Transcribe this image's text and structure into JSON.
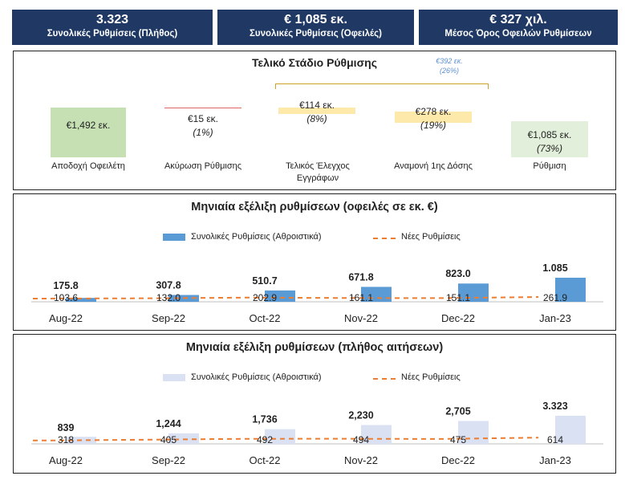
{
  "kpis": [
    {
      "value": "3.323",
      "label": "Συνολικές Ρυθμίσεις (Πλήθος)"
    },
    {
      "value": "€ 1,085 εκ.",
      "label": "Συνολικές Ρυθμίσεις (Οφειλές)"
    },
    {
      "value": "€ 327 χιλ.",
      "label": "Μέσος Όρος Οφειλών Ρυθμίσεων"
    }
  ],
  "stage": {
    "title": "Τελικό Στάδιο Ρύθμισης",
    "bracket_value": "€392 εκ.",
    "bracket_pct": "(26%)",
    "items": [
      {
        "category": "Αποδοχή Οφειλέτη",
        "value": "€1,492 εκ.",
        "pct": "",
        "amount": 1492,
        "color": "#c6e0b4"
      },
      {
        "category": "Ακύρωση Ρύθμισης",
        "value": "€15 εκ.",
        "pct": "(1%)",
        "amount": 15,
        "color": "#e06666"
      },
      {
        "category": "Τελικός Έλεγχος Εγγράφων",
        "value": "€114 εκ.",
        "pct": "(8%)",
        "amount": 114,
        "color": "#fde9a9"
      },
      {
        "category": "Αναμονή 1ης Δόσης",
        "value": "€278 εκ.",
        "pct": "(19%)",
        "amount": 278,
        "color": "#fde9a9"
      },
      {
        "category": "Ρύθμιση",
        "value": "€1,085 εκ.",
        "pct": "(73%)",
        "amount": 1085,
        "color": "#e2efda"
      }
    ]
  },
  "chart_data": [
    {
      "type": "bar",
      "title": "Μηνιαία εξέλιξη ρυθμίσεων (οφειλές σε εκ. €)",
      "categories": [
        "Aug-22",
        "Sep-22",
        "Oct-22",
        "Nov-22",
        "Dec-22",
        "Jan-23"
      ],
      "series": [
        {
          "name": "Συνολικές Ρυθμίσεις (Αθροιστικά)",
          "kind": "bar",
          "color": "#5b9bd5",
          "values": [
            175.8,
            307.8,
            510.7,
            671.8,
            823.0,
            1085
          ],
          "labels": [
            "175.8",
            "307.8",
            "510.7",
            "671.8",
            "823.0",
            "1.085"
          ]
        },
        {
          "name": "Νέες Ρυθμίσεις",
          "kind": "line-dashed",
          "color": "#ed7d31",
          "values": [
            103.6,
            132.0,
            202.9,
            161.1,
            151.1,
            261.9
          ],
          "labels": [
            "103.6",
            "132.0",
            "202.9",
            "161.1",
            "151.1",
            "261.9"
          ]
        }
      ],
      "legend": "top-center",
      "grid": false
    },
    {
      "type": "bar",
      "title": "Μηνιαία εξέλιξη ρυθμίσεων (πλήθος αιτήσεων)",
      "categories": [
        "Aug-22",
        "Sep-22",
        "Oct-22",
        "Nov-22",
        "Dec-22",
        "Jan-23"
      ],
      "series": [
        {
          "name": "Συνολικές Ρυθμίσεις (Αθροιστικά)",
          "kind": "bar",
          "color": "#d9e1f2",
          "values": [
            839,
            1244,
            1736,
            2230,
            2705,
            3323
          ],
          "labels": [
            "839",
            "1,244",
            "1,736",
            "2,230",
            "2,705",
            "3.323"
          ]
        },
        {
          "name": "Νέες Ρυθμίσεις",
          "kind": "line-dashed",
          "color": "#ed7d31",
          "values": [
            318,
            405,
            492,
            494,
            475,
            614
          ],
          "labels": [
            "318",
            "405",
            "492",
            "494",
            "475",
            "614"
          ]
        }
      ],
      "legend": "top-center",
      "grid": false
    }
  ]
}
